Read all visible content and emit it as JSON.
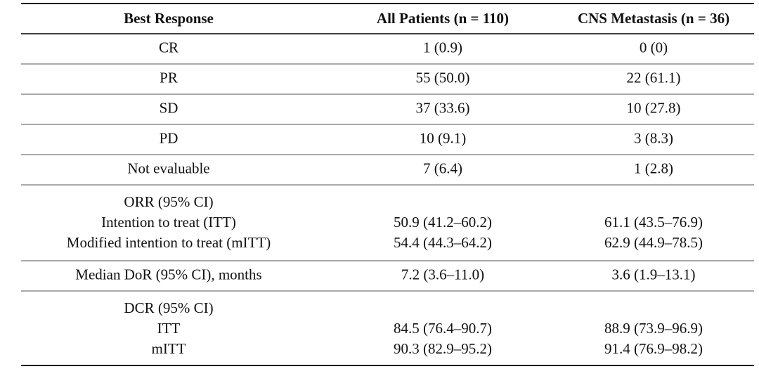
{
  "table": {
    "header": [
      "Best Response",
      "All Patients (n = 110)",
      "CNS Metastasis (n = 36)"
    ],
    "sections": [
      {
        "rows": [
          [
            "CR",
            "1 (0.9)",
            "0 (0)"
          ],
          [
            "PR",
            "55 (50.0)",
            "22 (61.1)"
          ],
          [
            "SD",
            "37 (33.6)",
            "10 (27.8)"
          ],
          [
            "PD",
            "10 (9.1)",
            "3 (8.3)"
          ],
          [
            "Not evaluable",
            "7 (6.4)",
            "1 (2.8)"
          ]
        ]
      },
      {
        "title": "ORR (95% CI)",
        "rows": [
          [
            "Intention to treat (ITT)",
            "50.9 (41.2–60.2)",
            "61.1 (43.5–76.9)"
          ],
          [
            "Modified intention to treat (mITT)",
            "54.4 (44.3–64.2)",
            "62.9 (44.9–78.5)"
          ]
        ]
      },
      {
        "rows": [
          [
            "Median DoR (95% CI), months",
            "7.2 (3.6–11.0)",
            "3.6 (1.9–13.1)"
          ]
        ]
      },
      {
        "title": "DCR (95% CI)",
        "rows": [
          [
            "ITT",
            "84.5 (76.4–90.7)",
            "88.9 (73.9–96.9)"
          ],
          [
            "mITT",
            "90.3 (82.9–95.2)",
            "91.4 (76.9–98.2)"
          ]
        ]
      }
    ]
  }
}
